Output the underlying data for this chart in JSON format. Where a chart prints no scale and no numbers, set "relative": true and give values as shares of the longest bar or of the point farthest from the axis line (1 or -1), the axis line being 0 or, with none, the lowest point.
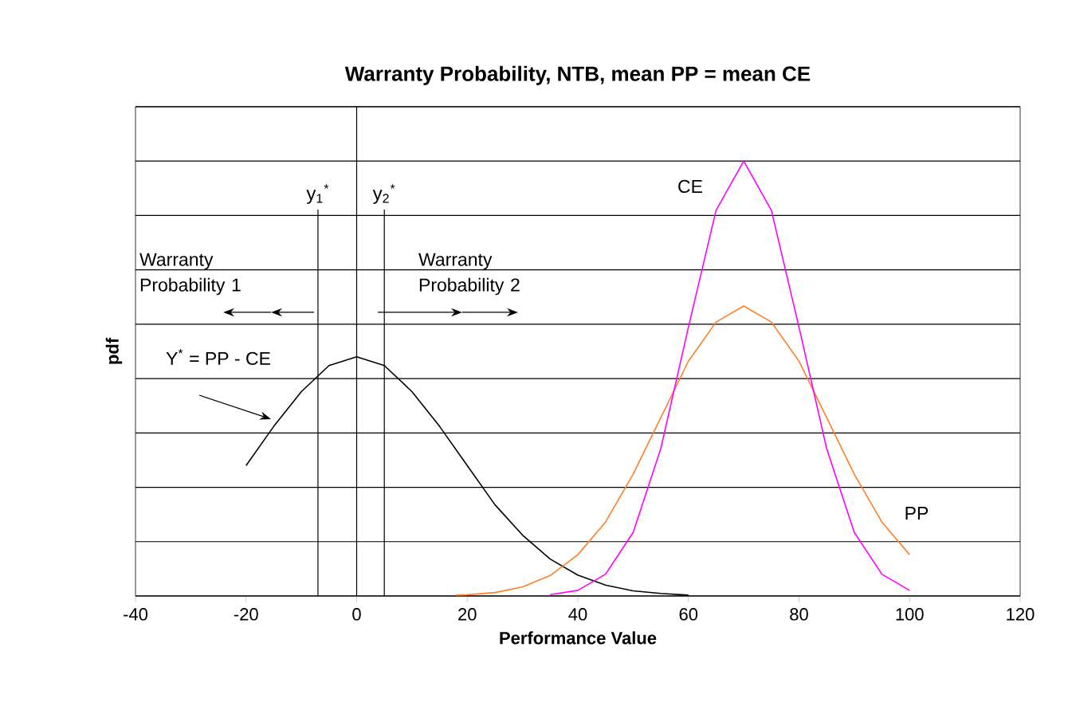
{
  "chart_data": {
    "type": "line",
    "title": "Warranty Probability, NTB, mean PP = mean CE",
    "xlabel": "Performance Value",
    "ylabel": "pdf",
    "relative": true,
    "xlim": [
      -40,
      120
    ],
    "xticks": [
      -40,
      -20,
      0,
      20,
      40,
      60,
      80,
      100,
      120
    ],
    "grid": "y",
    "marker": "none",
    "line_style": "solid",
    "series": [
      {
        "color": "#000000",
        "x": [
          -20,
          -15,
          -10,
          -5,
          0,
          5,
          10,
          15,
          20,
          25,
          30,
          35,
          40,
          45,
          50,
          55,
          60
        ],
        "values": [
          0.3,
          0.39,
          0.47,
          0.53,
          0.55,
          0.53,
          0.47,
          0.39,
          0.3,
          0.21,
          0.14,
          0.085,
          0.048,
          0.025,
          0.012,
          0.006,
          0.002
        ]
      },
      {
        "color": "#ff7f27",
        "x": [
          18,
          20,
          25,
          30,
          35,
          40,
          45,
          50,
          55,
          60,
          65,
          70,
          75,
          80,
          85,
          90,
          95,
          100
        ],
        "values": [
          0.002,
          0.003,
          0.008,
          0.021,
          0.047,
          0.095,
          0.17,
          0.28,
          0.41,
          0.54,
          0.63,
          0.667,
          0.63,
          0.54,
          0.41,
          0.28,
          0.17,
          0.095
        ]
      },
      {
        "color": "#ff00ff",
        "x": [
          35,
          40,
          45,
          50,
          55,
          60,
          65,
          70,
          75,
          80,
          85,
          90,
          95,
          100
        ],
        "values": [
          0.003,
          0.013,
          0.05,
          0.146,
          0.339,
          0.618,
          0.887,
          1,
          0.887,
          0.618,
          0.339,
          0.146,
          0.05,
          0.013
        ]
      }
    ],
    "ref_lines": [
      {
        "axis": "x",
        "value": 0,
        "color": "#000000"
      },
      {
        "axis": "x",
        "value": -7,
        "label": "y$_{1}$$^{*}$",
        "color": "#000000"
      },
      {
        "axis": "x",
        "value": 5,
        "label": "y$_{2}$$^{*}$",
        "color": "#000000"
      }
    ],
    "annotations": [
      "CE",
      "PP",
      "Y$^{*}$ = PP - CE",
      "Warranty Probability 1",
      "Warranty Probability 2"
    ]
  }
}
